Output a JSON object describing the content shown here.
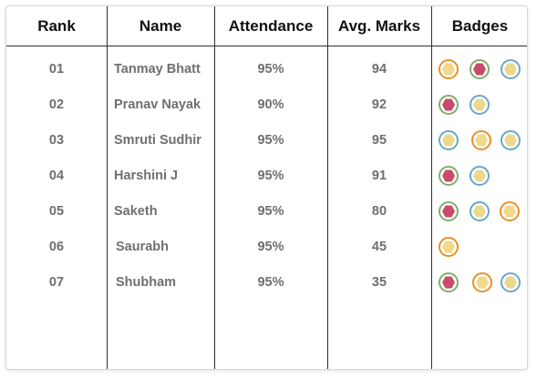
{
  "columns": [
    "Rank",
    "Name",
    "Attendance",
    "Avg. Marks",
    "Badges"
  ],
  "rows": [
    {
      "rank": "01",
      "name": "Tanmay Bhatt",
      "attendance": "95%",
      "marks": "94",
      "badges": [
        "gold",
        "green",
        "blue"
      ]
    },
    {
      "rank": "02",
      "name": "Pranav Nayak",
      "attendance": "90%",
      "marks": "92",
      "badges": [
        "green",
        "blue"
      ]
    },
    {
      "rank": "03",
      "name": "Smruti Sudhir",
      "attendance": "95%",
      "marks": "95",
      "badges": [
        "blue",
        "gold",
        "blue"
      ]
    },
    {
      "rank": "04",
      "name": "Harshini J",
      "attendance": "95%",
      "marks": "91",
      "badges": [
        "green",
        "blue"
      ]
    },
    {
      "rank": "05",
      "name": "Saketh",
      "attendance": "95%",
      "marks": "80",
      "badges": [
        "green",
        "blue",
        "gold"
      ]
    },
    {
      "rank": "06",
      "name": "Saurabh",
      "attendance": "95%",
      "marks": "45",
      "badges": [
        "gold"
      ]
    },
    {
      "rank": "07",
      "name": "Shubham",
      "attendance": "95%",
      "marks": "35",
      "badges": [
        "green",
        "gold",
        "blue"
      ]
    }
  ],
  "badge_colors": {
    "gold": {
      "ring": "#e8902a",
      "fill": "#f1d98c"
    },
    "blue": {
      "ring": "#6aa6c8",
      "fill": "#ead98d"
    },
    "green": {
      "ring": "#7fae6a",
      "fill": "#c94b6c"
    }
  }
}
